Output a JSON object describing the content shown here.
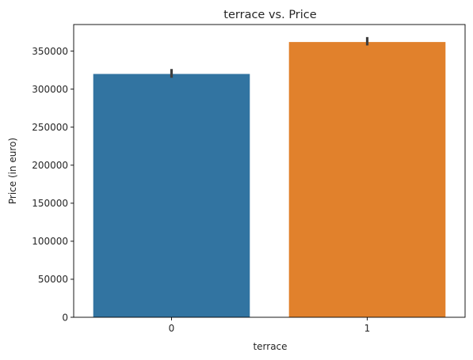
{
  "chart_data": {
    "type": "bar",
    "title": "terrace vs. Price",
    "xlabel": "terrace",
    "ylabel": "Price (in euro)",
    "categories": [
      "0",
      "1"
    ],
    "values": [
      320000,
      362000
    ],
    "error_bars": [
      [
        315000,
        326500
      ],
      [
        357500,
        368500
      ]
    ],
    "ylim": [
      0,
      385000
    ],
    "yticks": [
      0,
      50000,
      100000,
      150000,
      200000,
      250000,
      300000,
      350000
    ],
    "ytick_labels": [
      "0",
      "50000",
      "100000",
      "150000",
      "200000",
      "250000",
      "300000",
      "350000"
    ],
    "grid": false,
    "legend": "none",
    "colors": [
      "#3274a1",
      "#e1812c"
    ],
    "error_color": "#3f3f3f"
  }
}
